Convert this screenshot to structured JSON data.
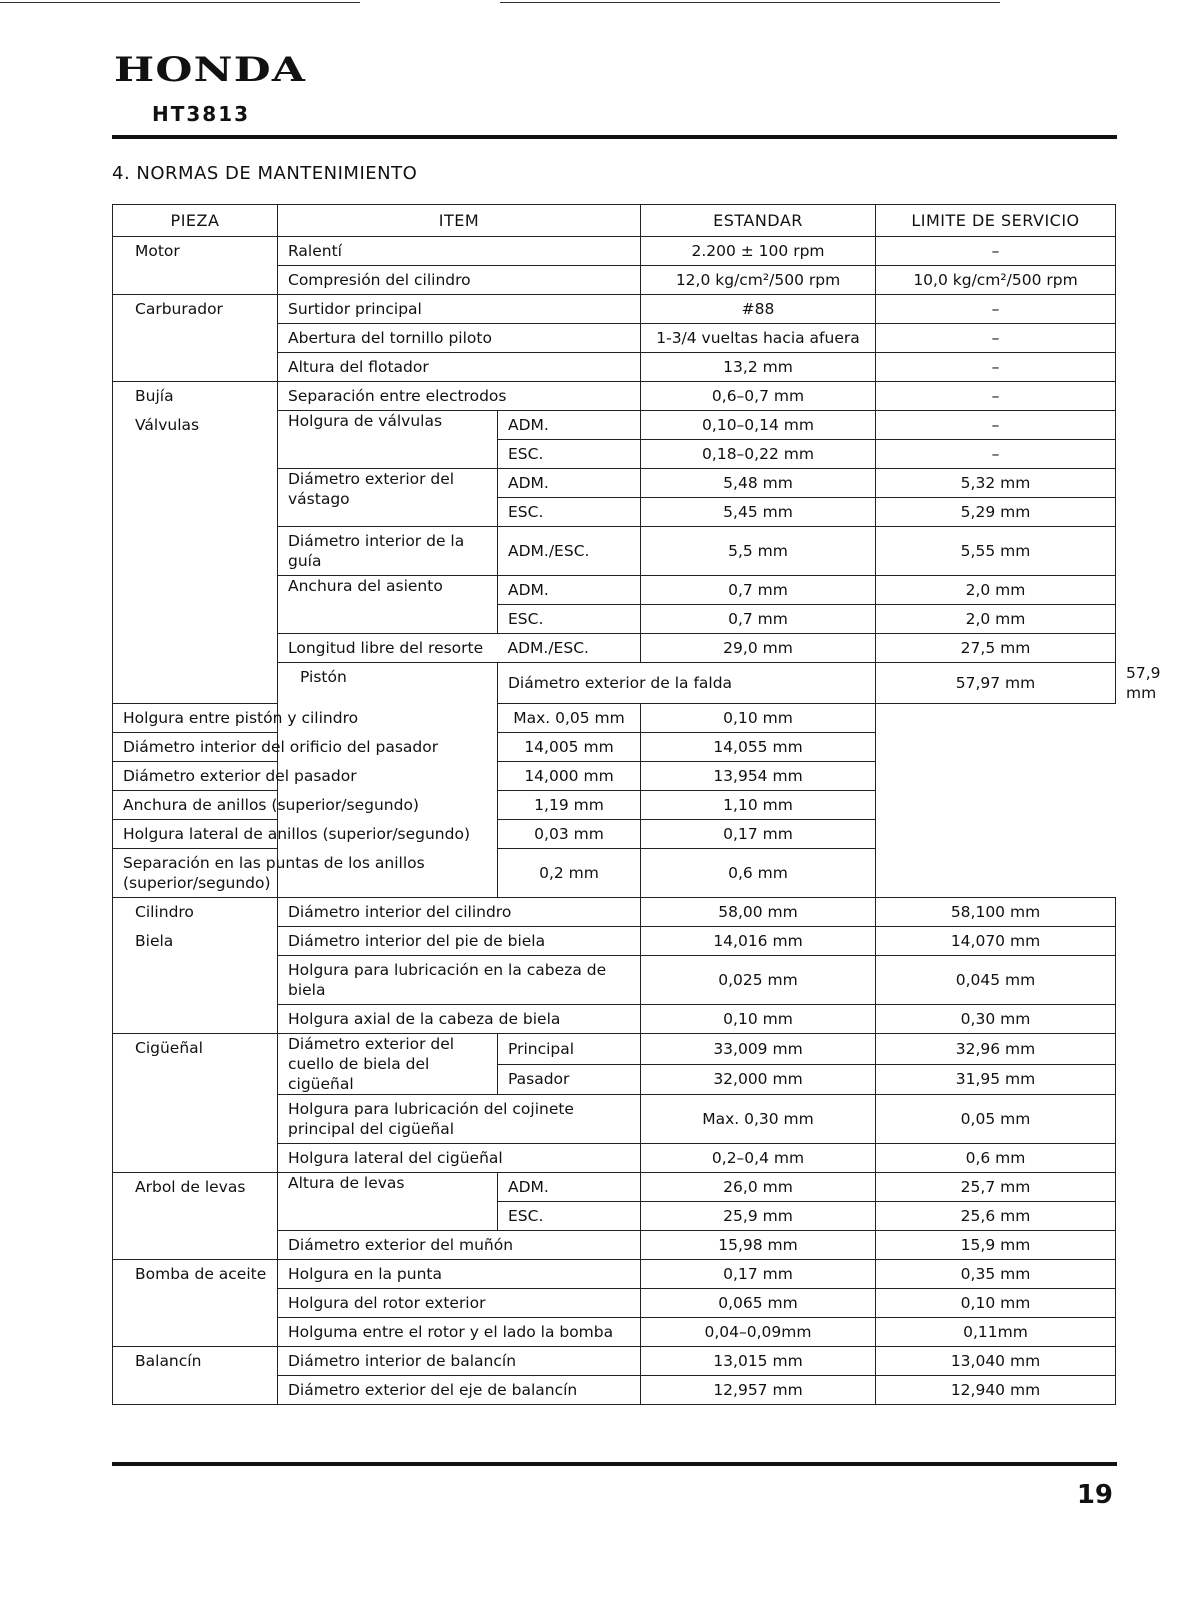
{
  "header": {
    "brand": "HONDA",
    "model": "HT3813"
  },
  "section_title": "4. NORMAS DE MANTENIMIENTO",
  "columns": [
    "PIEZA",
    "ITEM",
    "ESTANDAR",
    "LIMITE DE SERVICIO"
  ],
  "rows": [
    [
      {
        "t": "Motor",
        "rs": 2,
        "k": "pieza"
      },
      {
        "t": "Ralentí",
        "cs": 2
      },
      {
        "t": "2.200 ± 100 rpm",
        "k": "c"
      },
      {
        "t": "–",
        "k": "c"
      }
    ],
    [
      {
        "t": "Compresión del cilindro",
        "cs": 2
      },
      {
        "t": "12,0 kg/cm²/500 rpm",
        "k": "c"
      },
      {
        "t": "10,0 kg/cm²/500 rpm",
        "k": "c"
      }
    ],
    [
      {
        "t": "Carburador",
        "rs": 3,
        "k": "pieza"
      },
      {
        "t": "Surtidor principal",
        "cs": 2
      },
      {
        "t": "#88",
        "k": "c"
      },
      {
        "t": "–",
        "k": "c"
      }
    ],
    [
      {
        "t": "Abertura del tornillo piloto",
        "cs": 2
      },
      {
        "t": "1-3/4 vueltas hacia afuera",
        "k": "c"
      },
      {
        "t": "–",
        "k": "c"
      }
    ],
    [
      {
        "t": "Altura del flotador",
        "cs": 2
      },
      {
        "t": "13,2 mm",
        "k": "c"
      },
      {
        "t": "–",
        "k": "c"
      }
    ],
    [
      {
        "t": "Bujía",
        "k": "pieza nb"
      },
      {
        "t": "Separación entre electrodos",
        "cs": 2
      },
      {
        "t": "0,6–0,7 mm",
        "k": "c"
      },
      {
        "t": "–",
        "k": "c"
      }
    ],
    [
      {
        "t": "Válvulas",
        "rs": 9,
        "k": "pieza nt"
      },
      {
        "t": "Holgura de válvulas",
        "rs": 2,
        "k": "pieza0"
      },
      {
        "t": "ADM."
      },
      {
        "t": "0,10–0,14 mm",
        "k": "c"
      },
      {
        "t": "–",
        "k": "c"
      }
    ],
    [
      {
        "t": "ESC."
      },
      {
        "t": "0,18–0,22 mm",
        "k": "c"
      },
      {
        "t": "–",
        "k": "c"
      }
    ],
    [
      {
        "t": "Diámetro exterior del vástago",
        "rs": 2,
        "k": "pieza0"
      },
      {
        "t": "ADM."
      },
      {
        "t": "5,48 mm",
        "k": "c"
      },
      {
        "t": "5,32 mm",
        "k": "c"
      }
    ],
    [
      {
        "t": "ESC."
      },
      {
        "t": "5,45 mm",
        "k": "c"
      },
      {
        "t": "5,29 mm",
        "k": "c"
      }
    ],
    {
      "tall": true,
      "cells": [
        {
          "t": "Diámetro interior de la guía"
        },
        {
          "t": "ADM./ESC."
        },
        {
          "t": "5,5 mm",
          "k": "c"
        },
        {
          "t": "5,55 mm",
          "k": "c"
        }
      ]
    },
    [
      {
        "t": "Anchura del asiento",
        "rs": 2,
        "k": "pieza0"
      },
      {
        "t": "ADM."
      },
      {
        "t": "0,7 mm",
        "k": "c"
      },
      {
        "t": "2,0 mm",
        "k": "c"
      }
    ],
    [
      {
        "t": "ESC."
      },
      {
        "t": "0,7 mm",
        "k": "c"
      },
      {
        "t": "2,0 mm",
        "k": "c"
      }
    ],
    [
      {
        "t": "Longitud libre del resorte",
        "k": "nr"
      },
      {
        "t": "ADM./ESC.",
        "k": "nl"
      },
      {
        "t": "29,0 mm",
        "k": "c"
      },
      {
        "t": "27,5 mm",
        "k": "c"
      }
    ],
    [
      {
        "t": "Pistón",
        "rs": 7,
        "k": "pieza"
      },
      {
        "t": "Diámetro exterior de la falda",
        "cs": 2
      },
      {
        "t": "57,97 mm",
        "k": "c"
      },
      {
        "t": "57,9 mm",
        "k": "c"
      }
    ],
    [
      {
        "t": "Holgura entre pistón y cilindro",
        "cs": 2
      },
      {
        "t": "Max. 0,05 mm",
        "k": "c"
      },
      {
        "t": "0,10 mm",
        "k": "c"
      }
    ],
    [
      {
        "t": "Diámetro interior del orificio del pasador",
        "cs": 2
      },
      {
        "t": "14,005 mm",
        "k": "c"
      },
      {
        "t": "14,055 mm",
        "k": "c"
      }
    ],
    [
      {
        "t": "Diámetro exterior del pasador",
        "cs": 2
      },
      {
        "t": "14,000 mm",
        "k": "c"
      },
      {
        "t": "13,954 mm",
        "k": "c"
      }
    ],
    [
      {
        "t": "Anchura de anillos (superior/segundo)",
        "cs": 2
      },
      {
        "t": "1,19 mm",
        "k": "c"
      },
      {
        "t": "1,10 mm",
        "k": "c"
      }
    ],
    [
      {
        "t": "Holgura lateral de anillos (superior/segundo)",
        "cs": 2
      },
      {
        "t": "0,03 mm",
        "k": "c"
      },
      {
        "t": "0,17 mm",
        "k": "c"
      }
    ],
    {
      "tall": true,
      "cells": [
        {
          "t": "Separación en las puntas de los anillos (superior/segundo)",
          "cs": 2
        },
        {
          "t": "0,2 mm",
          "k": "c"
        },
        {
          "t": "0,6 mm",
          "k": "c"
        }
      ]
    },
    [
      {
        "t": "Cilindro",
        "k": "pieza nb"
      },
      {
        "t": "Diámetro interior del cilindro",
        "cs": 2
      },
      {
        "t": "58,00 mm",
        "k": "c"
      },
      {
        "t": "58,100 mm",
        "k": "c"
      }
    ],
    [
      {
        "t": "Biela",
        "rs": 3,
        "k": "pieza nt"
      },
      {
        "t": "Diámetro interior del pie de biela",
        "cs": 2
      },
      {
        "t": "14,016 mm",
        "k": "c"
      },
      {
        "t": "14,070 mm",
        "k": "c"
      }
    ],
    {
      "tall": true,
      "cells": [
        {
          "t": "Holgura para lubricación en la cabeza de biela",
          "cs": 2
        },
        {
          "t": "0,025 mm",
          "k": "c"
        },
        {
          "t": "0,045 mm",
          "k": "c"
        }
      ]
    },
    [
      {
        "t": "Holgura axial de la cabeza de biela",
        "cs": 2
      },
      {
        "t": "0,10 mm",
        "k": "c"
      },
      {
        "t": "0,30 mm",
        "k": "c"
      }
    ],
    [
      {
        "t": "Cigüeñal",
        "rs": 4,
        "k": "pieza"
      },
      {
        "t": "Diámetro exterior del cuello de biela del cigüeñal",
        "rs": 2,
        "k": "pieza0"
      },
      {
        "t": "Principal"
      },
      {
        "t": "33,009 mm",
        "k": "c"
      },
      {
        "t": "32,96 mm",
        "k": "c"
      }
    ],
    [
      {
        "t": "Pasador"
      },
      {
        "t": "32,000 mm",
        "k": "c"
      },
      {
        "t": "31,95 mm",
        "k": "c"
      }
    ],
    {
      "tall": true,
      "cells": [
        {
          "t": "Holgura para lubricación del cojinete principal del cigüeñal",
          "cs": 2
        },
        {
          "t": "Max. 0,30 mm",
          "k": "c"
        },
        {
          "t": "0,05 mm",
          "k": "c"
        }
      ]
    },
    [
      {
        "t": "Holgura lateral del cigüeñal",
        "cs": 2
      },
      {
        "t": "0,2–0,4 mm",
        "k": "c"
      },
      {
        "t": "0,6 mm",
        "k": "c"
      }
    ],
    [
      {
        "t": "Arbol de levas",
        "rs": 3,
        "k": "pieza"
      },
      {
        "t": "Altura de levas",
        "rs": 2,
        "k": "pieza0"
      },
      {
        "t": "ADM."
      },
      {
        "t": "26,0 mm",
        "k": "c"
      },
      {
        "t": "25,7 mm",
        "k": "c"
      }
    ],
    [
      {
        "t": "ESC."
      },
      {
        "t": "25,9 mm",
        "k": "c"
      },
      {
        "t": "25,6 mm",
        "k": "c"
      }
    ],
    [
      {
        "t": "Diámetro exterior del muñón",
        "cs": 2
      },
      {
        "t": "15,98 mm",
        "k": "c"
      },
      {
        "t": "15,9 mm",
        "k": "c"
      }
    ],
    [
      {
        "t": "Bomba de aceite",
        "rs": 3,
        "k": "pieza"
      },
      {
        "t": "Holgura en la punta",
        "cs": 2
      },
      {
        "t": "0,17 mm",
        "k": "c"
      },
      {
        "t": "0,35 mm",
        "k": "c"
      }
    ],
    [
      {
        "t": "Holgura del rotor exterior",
        "cs": 2
      },
      {
        "t": "0,065 mm",
        "k": "c"
      },
      {
        "t": "0,10 mm",
        "k": "c"
      }
    ],
    [
      {
        "t": "Holguma entre el rotor y el lado la bomba",
        "cs": 2
      },
      {
        "t": "0,04–0,09mm",
        "k": "c"
      },
      {
        "t": "0,11mm",
        "k": "c"
      }
    ],
    [
      {
        "t": "Balancín",
        "rs": 2,
        "k": "pieza"
      },
      {
        "t": "Diámetro interior de balancín",
        "cs": 2
      },
      {
        "t": "13,015 mm",
        "k": "c"
      },
      {
        "t": "13,040 mm",
        "k": "c"
      }
    ],
    [
      {
        "t": "Diámetro exterior del eje de balancín",
        "cs": 2
      },
      {
        "t": "12,957 mm",
        "k": "c"
      },
      {
        "t": "12,940 mm",
        "k": "c"
      }
    ]
  ],
  "page_number": "19"
}
